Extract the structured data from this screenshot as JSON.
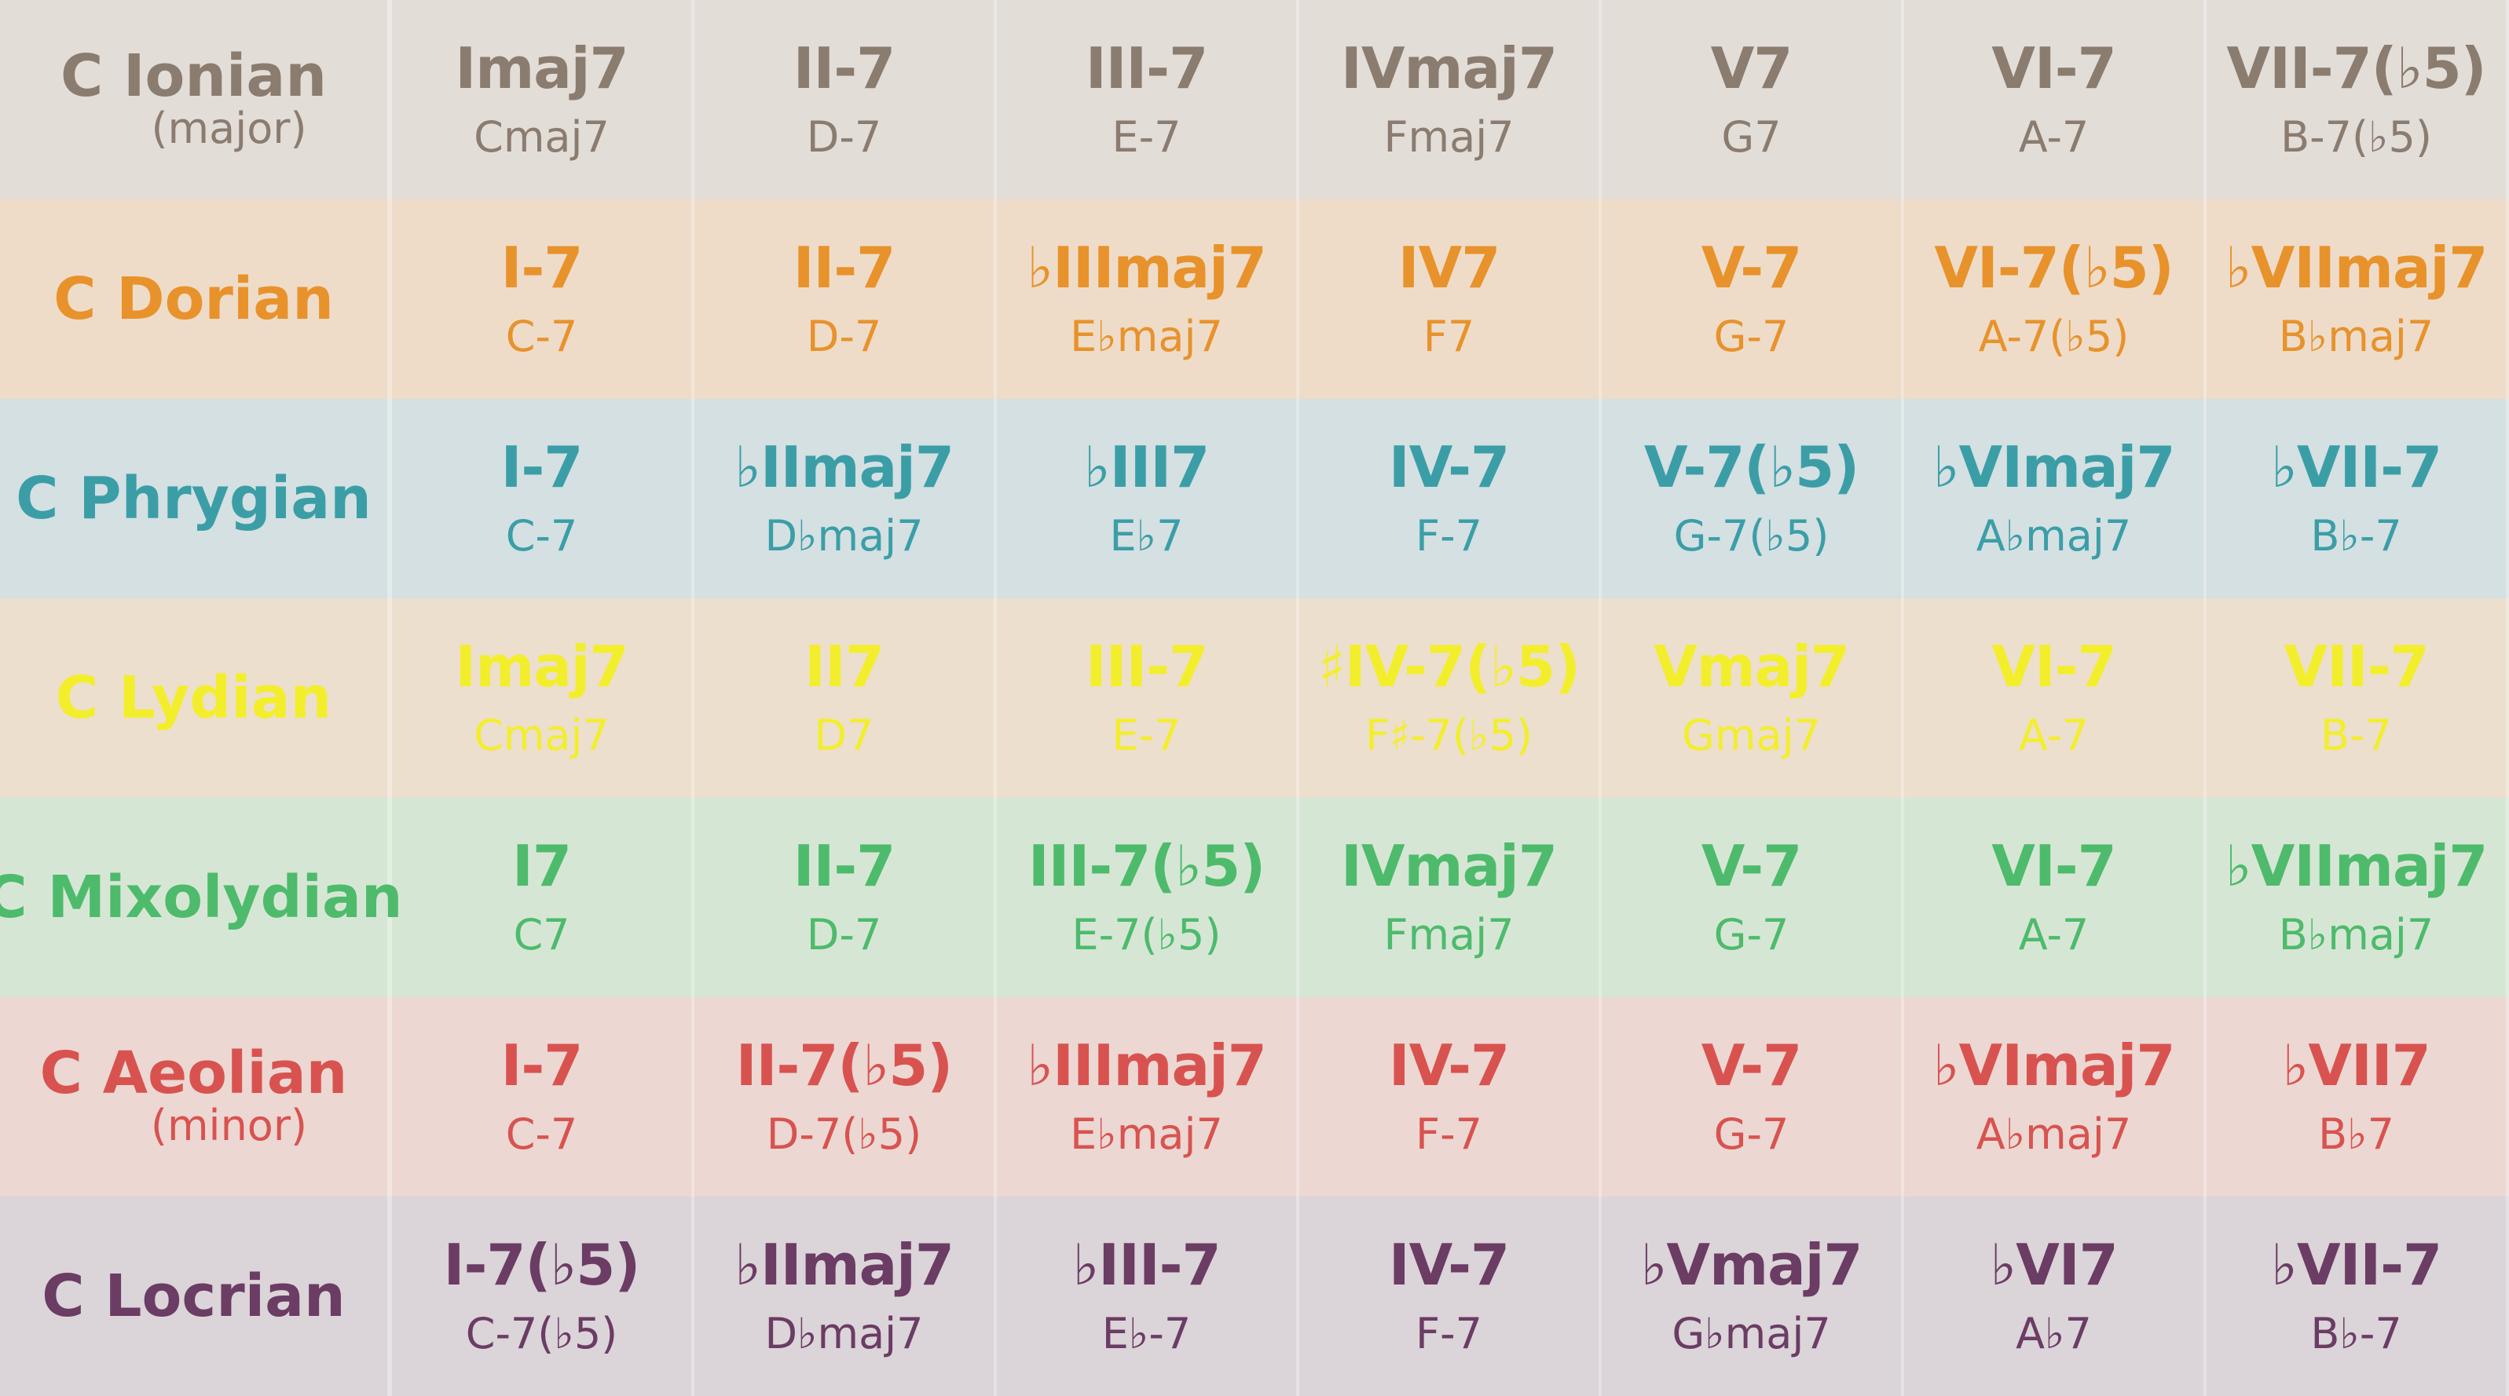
{
  "table": {
    "rows": [
      {
        "mode": "C Ionian",
        "subtitle": "(major)",
        "color": "#8b7c70",
        "background": "#e3ddd8",
        "numerals": [
          "Imaj7",
          "II-7",
          "III-7",
          "IVmaj7",
          "V7",
          "VI-7",
          "VII-7(♭5)"
        ],
        "chords": [
          "Cmaj7",
          "D-7",
          "E-7",
          "Fmaj7",
          "G7",
          "A-7",
          "B-7(♭5)"
        ]
      },
      {
        "mode": "C Dorian",
        "color": "#e8922c",
        "background": "#eedcc8",
        "numerals": [
          "I-7",
          "II-7",
          "♭IIImaj7",
          "IV7",
          "V-7",
          "VI-7(♭5)",
          "♭VIImaj7"
        ],
        "chords": [
          "C-7",
          "D-7",
          "E♭maj7",
          "F7",
          "G-7",
          "A-7(♭5)",
          "B♭maj7"
        ]
      },
      {
        "mode": "C Phrygian",
        "color": "#3b9ea7",
        "background": "#d4e0e2",
        "numerals": [
          "I-7",
          "♭IImaj7",
          "♭III7",
          "IV-7",
          "V-7(♭5)",
          "♭VImaj7",
          "♭VII-7"
        ],
        "chords": [
          "C-7",
          "D♭maj7",
          "E♭7",
          "F-7",
          "G-7(♭5)",
          "A♭maj7",
          "B♭-7"
        ]
      },
      {
        "mode": "C Lydian",
        "color": "#f3ee2c",
        "background": "#ecdfcd",
        "numerals": [
          "Imaj7",
          "II7",
          "III-7",
          "♯IV-7(♭5)",
          "Vmaj7",
          "VI-7",
          "VII-7"
        ],
        "chords": [
          "Cmaj7",
          "D7",
          "E-7",
          "F♯-7(♭5)",
          "Gmaj7",
          "A-7",
          "B-7"
        ]
      },
      {
        "mode": "C Mixolydian",
        "color": "#4dbb6b",
        "background": "#d6e6d5",
        "numerals": [
          "I7",
          "II-7",
          "III-7(♭5)",
          "IVmaj7",
          "V-7",
          "VI-7",
          "♭VIImaj7"
        ],
        "chords": [
          "C7",
          "D-7",
          "E-7(♭5)",
          "Fmaj7",
          "G-7",
          "A-7",
          "B♭maj7"
        ]
      },
      {
        "mode": "C Aeolian",
        "subtitle": "(minor)",
        "color": "#d8534f",
        "background": "#ecd7d3",
        "numerals": [
          "I-7",
          "II-7(♭5)",
          "♭IIImaj7",
          "IV-7",
          "V-7",
          "♭VImaj7",
          "♭VII7"
        ],
        "chords": [
          "C-7",
          "D-7(♭5)",
          "E♭maj7",
          "F-7",
          "G-7",
          "A♭maj7",
          "B♭7"
        ]
      },
      {
        "mode": "C Locrian",
        "color": "#6b3c64",
        "background": "#dbd4d9",
        "numerals": [
          "I-7(♭5)",
          "♭IImaj7",
          "♭III-7",
          "IV-7",
          "♭Vmaj7",
          "♭VI7",
          "♭VII-7"
        ],
        "chords": [
          "C-7(♭5)",
          "D♭maj7",
          "E♭-7",
          "F-7",
          "G♭maj7",
          "A♭7",
          "B♭-7"
        ]
      }
    ]
  }
}
